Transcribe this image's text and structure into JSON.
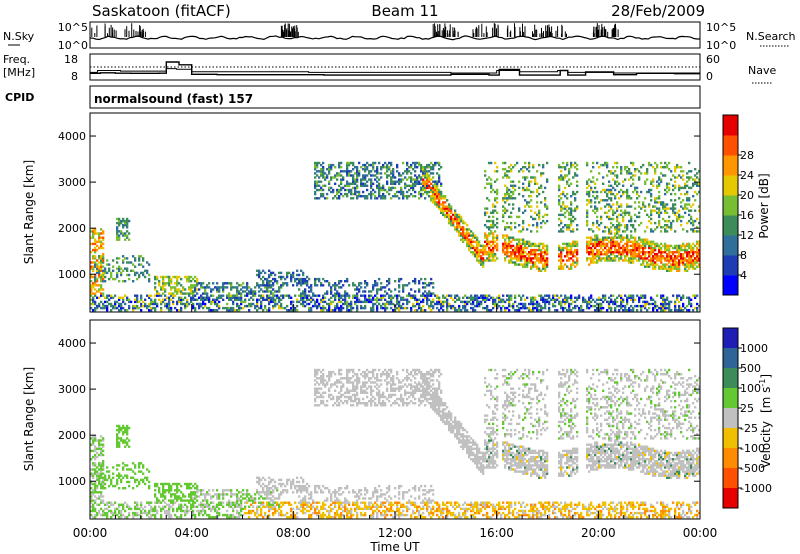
{
  "header": {
    "radar": "Saskatoon (fitACF)",
    "beam": "Beam 11",
    "date": "28/Feb/2009"
  },
  "noise_panel": {
    "left_label": "N.Sky",
    "right_label": "N.Search",
    "ticks": [
      "10^5",
      "10^0"
    ]
  },
  "freq_panel": {
    "left_label_1": "Freq.",
    "left_label_2": "[MHz]",
    "left_ticks": [
      "18",
      "8"
    ],
    "right_label": "Nave",
    "right_ticks": [
      "60",
      "0"
    ]
  },
  "cpid": {
    "label": "CPID",
    "value": "normalsound (fast) 157"
  },
  "chart_data": [
    {
      "type": "heatmap",
      "name": "power",
      "ylabel": "Slant Range [km]",
      "yticks": [
        "1000",
        "2000",
        "3000",
        "4000"
      ],
      "ylim": [
        180,
        4500
      ],
      "xlim": [
        0,
        24
      ],
      "colorbar": {
        "label": "Power [dB]",
        "tick_labels": [
          "4",
          "8",
          "12",
          "16",
          "20",
          "24",
          "28"
        ],
        "colors": [
          "#0000ff",
          "#1e3cb4",
          "#2f6f9a",
          "#3c8c5a",
          "#78be32",
          "#e6c800",
          "#ff9600",
          "#ff5000",
          "#e60000"
        ]
      }
    },
    {
      "type": "heatmap",
      "name": "velocity",
      "ylabel": "Slant Range [km]",
      "yticks": [
        "1000",
        "2000",
        "3000",
        "4000"
      ],
      "ylim": [
        180,
        4500
      ],
      "xlim": [
        0,
        24
      ],
      "xticks": [
        "00:00",
        "04:00",
        "08:00",
        "12:00",
        "16:00",
        "20:00",
        "00:00"
      ],
      "xlabel": "Time UT",
      "colorbar": {
        "label_main": "Velocity",
        "label_unit": "[m s",
        "label_exp": "-1",
        "label_close": "]",
        "tick_labels": [
          "1000",
          "500",
          "100",
          "25",
          "-25",
          "-100",
          "-500",
          "-1000"
        ],
        "colors": [
          "#1e1eb4",
          "#2f6496",
          "#3c8c5a",
          "#64c832",
          "#c0c0c0",
          "#f0c000",
          "#ff8c00",
          "#ff5000",
          "#e60000"
        ]
      }
    }
  ]
}
